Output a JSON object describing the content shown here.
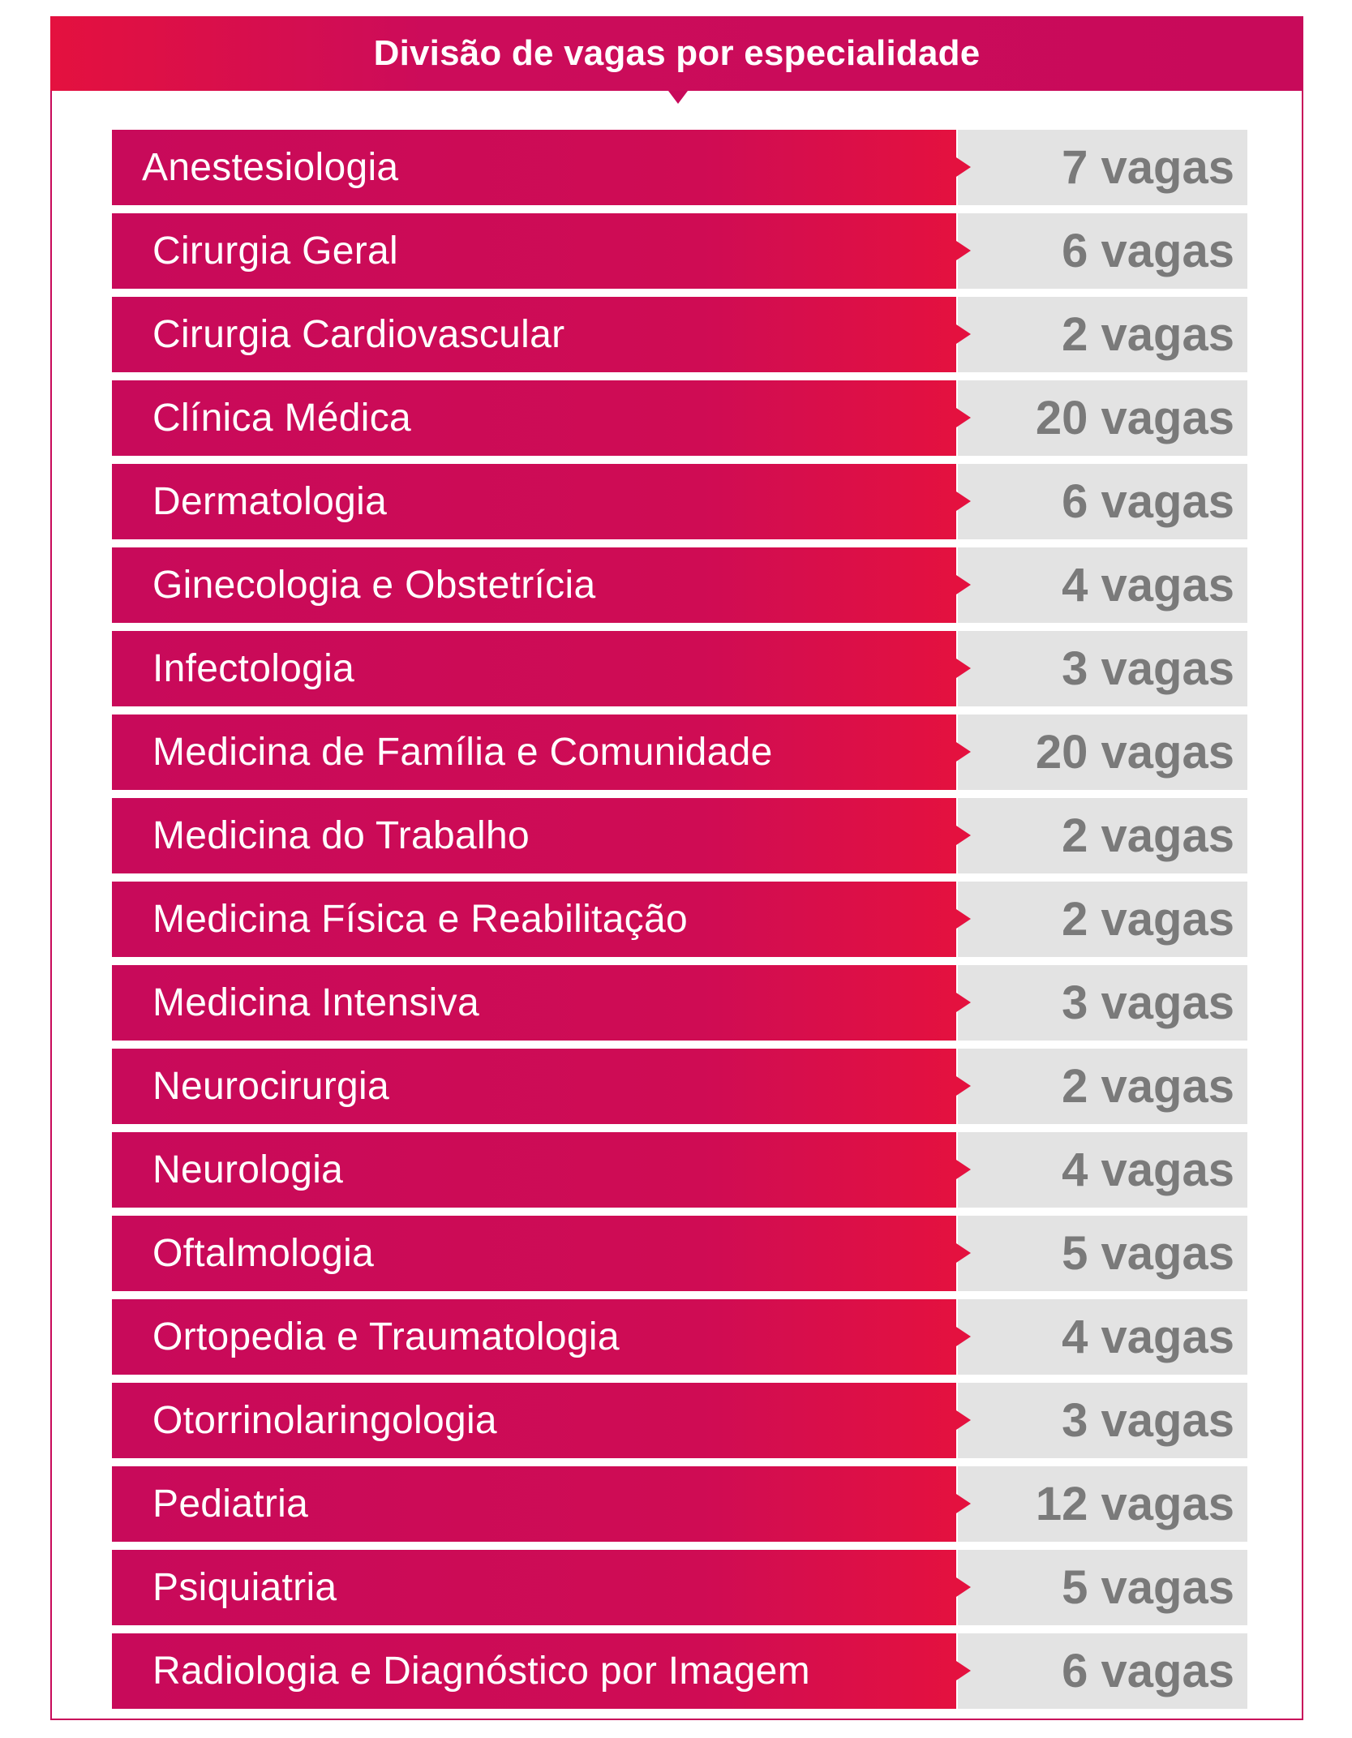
{
  "title": "Divisão de vagas por especialidade",
  "colors": {
    "accent": "#c80a5a",
    "accent_red": "#e4113f",
    "value_bg": "#e3e3e3",
    "value_text": "#7a7a7a"
  },
  "rows": [
    {
      "name": "Anestesiologia",
      "vagas": "7 vagas"
    },
    {
      "name": "Cirurgia Geral",
      "vagas": "6 vagas"
    },
    {
      "name": "Cirurgia Cardiovascular",
      "vagas": "2 vagas"
    },
    {
      "name": "Clínica Médica",
      "vagas": "20 vagas"
    },
    {
      "name": "Dermatologia",
      "vagas": "6 vagas"
    },
    {
      "name": "Ginecologia e Obstetrícia",
      "vagas": "4 vagas"
    },
    {
      "name": "Infectologia",
      "vagas": "3 vagas"
    },
    {
      "name": "Medicina de Família e Comunidade",
      "vagas": "20 vagas"
    },
    {
      "name": "Medicina do Trabalho",
      "vagas": "2 vagas"
    },
    {
      "name": "Medicina Física e Reabilitação",
      "vagas": "2 vagas"
    },
    {
      "name": "Medicina Intensiva",
      "vagas": "3 vagas"
    },
    {
      "name": "Neurocirurgia",
      "vagas": "2 vagas"
    },
    {
      "name": "Neurologia",
      "vagas": "4 vagas"
    },
    {
      "name": "Oftalmologia",
      "vagas": "5 vagas"
    },
    {
      "name": "Ortopedia e Traumatologia",
      "vagas": "4 vagas"
    },
    {
      "name": "Otorrinolaringologia",
      "vagas": "3 vagas"
    },
    {
      "name": "Pediatria",
      "vagas": "12 vagas"
    },
    {
      "name": "Psiquiatria",
      "vagas": "5 vagas"
    },
    {
      "name": "Radiologia e Diagnóstico por Imagem",
      "vagas": "6 vagas"
    }
  ]
}
